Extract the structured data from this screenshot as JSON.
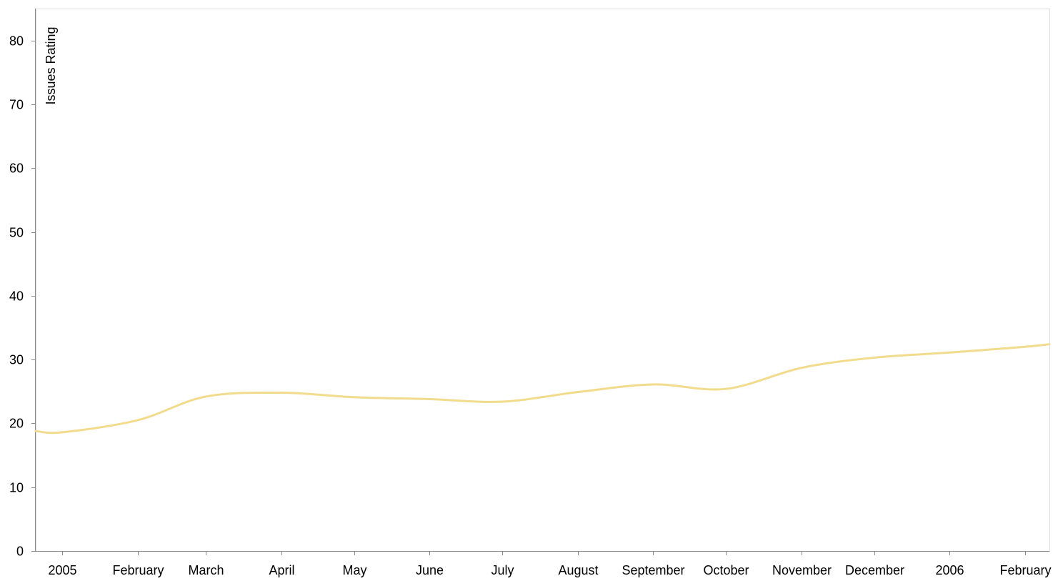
{
  "chart_data": {
    "type": "line",
    "title": "",
    "xlabel": "",
    "ylabel": "Issues Rating",
    "ylim": [
      0,
      85
    ],
    "yticks": [
      0,
      10,
      20,
      30,
      40,
      50,
      60,
      70,
      80
    ],
    "grid": false,
    "xticks": [
      {
        "date": "2005-01-01",
        "label": "2005"
      },
      {
        "date": "2005-02-01",
        "label": "February"
      },
      {
        "date": "2005-03-01",
        "label": "March"
      },
      {
        "date": "2005-04-01",
        "label": "April"
      },
      {
        "date": "2005-05-01",
        "label": "May"
      },
      {
        "date": "2005-06-01",
        "label": "June"
      },
      {
        "date": "2005-07-01",
        "label": "July"
      },
      {
        "date": "2005-08-01",
        "label": "August"
      },
      {
        "date": "2005-09-01",
        "label": "September"
      },
      {
        "date": "2005-10-01",
        "label": "October"
      },
      {
        "date": "2005-11-01",
        "label": "November"
      },
      {
        "date": "2005-12-01",
        "label": "December"
      },
      {
        "date": "2006-01-01",
        "label": "2006"
      },
      {
        "date": "2006-02-01",
        "label": "February"
      }
    ],
    "xlim": [
      "2004-12-21",
      "2006-02-11"
    ],
    "series": [
      {
        "color": "#f0dc8c",
        "points": [
          {
            "x": "2004-12-21",
            "y": 18.8
          },
          {
            "x": "2005-01-01",
            "y": 18.6
          },
          {
            "x": "2005-02-01",
            "y": 20.5
          },
          {
            "x": "2005-03-01",
            "y": 24.2
          },
          {
            "x": "2005-04-01",
            "y": 24.8
          },
          {
            "x": "2005-05-01",
            "y": 24.1
          },
          {
            "x": "2005-06-01",
            "y": 23.8
          },
          {
            "x": "2005-07-01",
            "y": 23.4
          },
          {
            "x": "2005-08-01",
            "y": 24.9
          },
          {
            "x": "2005-09-01",
            "y": 26.1
          },
          {
            "x": "2005-10-01",
            "y": 25.4
          },
          {
            "x": "2005-11-01",
            "y": 28.7
          },
          {
            "x": "2005-12-01",
            "y": 30.3
          },
          {
            "x": "2006-01-01",
            "y": 31.1
          },
          {
            "x": "2006-02-01",
            "y": 32.0
          },
          {
            "x": "2006-02-11",
            "y": 32.4
          }
        ]
      }
    ]
  }
}
